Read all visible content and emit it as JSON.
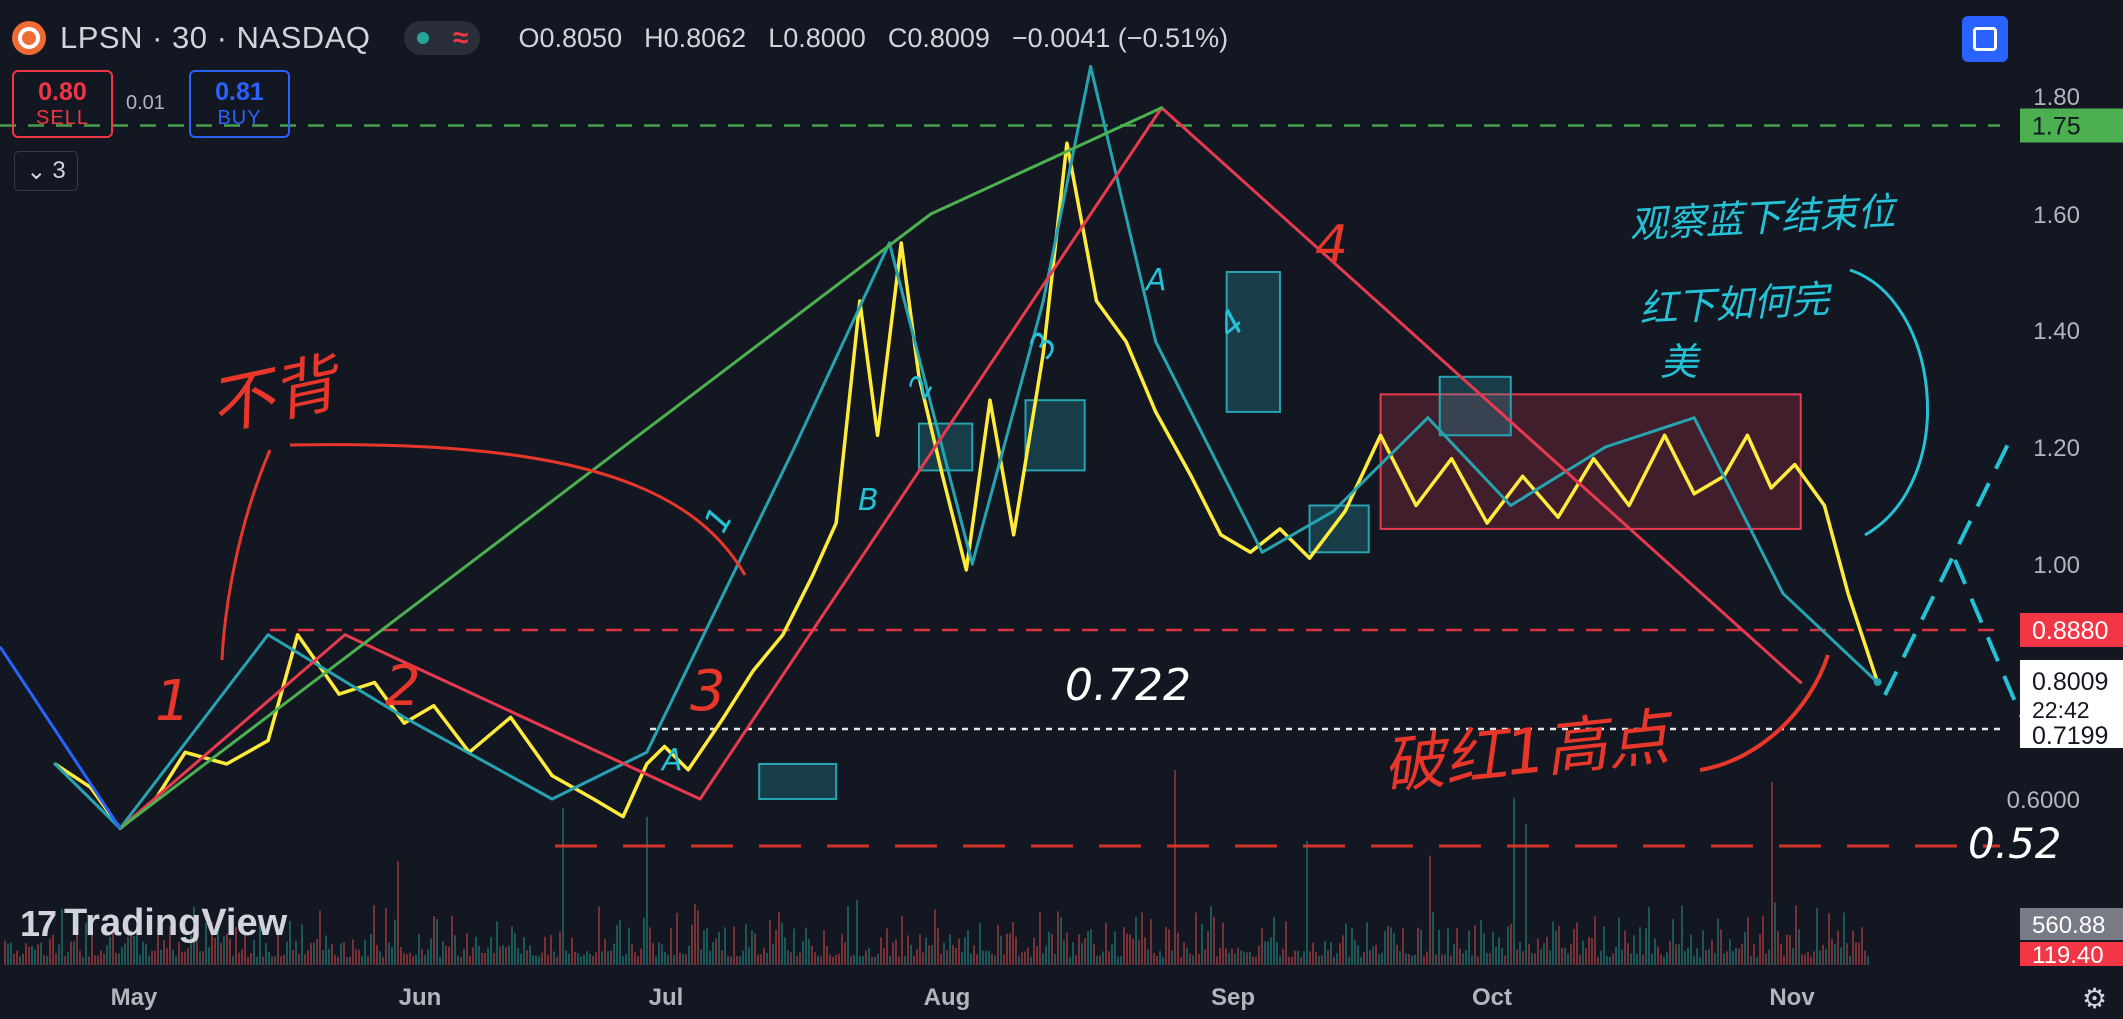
{
  "header": {
    "symbol": "LPSN · 30 · NASDAQ",
    "open_label": "O",
    "open": "0.8050",
    "high_label": "H",
    "high": "0.8062",
    "low_label": "L",
    "low": "0.8000",
    "close_label": "C",
    "close": "0.8009",
    "change": "−0.0041 (−0.51%)"
  },
  "trade": {
    "sell_price": "0.80",
    "sell_label": "SELL",
    "spread": "0.01",
    "buy_price": "0.81",
    "buy_label": "BUY"
  },
  "collapse_count": "3",
  "branding": "TradingView",
  "colors": {
    "background": "#131722",
    "candle_up": "#26a69a",
    "candle_down": "#ef5350",
    "yellow": "#ffeb3b",
    "teal": "#26a3b0",
    "red_line": "#e83a4f",
    "green_line": "#4caf50",
    "annot_red": "#e8372a",
    "annot_cyan": "#25c1d6"
  },
  "chart_data": {
    "type": "line",
    "title": "LPSN · 30 · NASDAQ",
    "x_tick_labels": [
      "May",
      "Jun",
      "Jul",
      "Aug",
      "Sep",
      "Oct",
      "Nov"
    ],
    "y_tick_labels": [
      "1.80",
      "1.60",
      "1.40",
      "1.20",
      "1.00",
      "0.6000"
    ],
    "ylim": [
      0.35,
      1.86
    ],
    "price_scale": "log-like (non-linear)",
    "series": [
      {
        "name": "price path (yellow)",
        "color": "#ffeb3b",
        "x": [
          0,
          0.3,
          0.55,
          0.85,
          1.1,
          1.45,
          1.8,
          2.05,
          2.4,
          2.7,
          2.95,
          3.2,
          3.5,
          3.85,
          4.2,
          4.55,
          4.8,
          5.0,
          5.15,
          5.35,
          5.65,
          5.9,
          6.15,
          6.4,
          6.6,
          6.8,
          6.95,
          7.15,
          7.3,
          7.5,
          7.7,
          7.9,
          8.1,
          8.35,
          8.55,
          8.8,
          9.05,
          9.3,
          9.6,
          9.85,
          10.1,
          10.35,
          10.6,
          10.9,
          11.2,
          11.5,
          11.8,
          12.1,
          12.4,
          12.7,
          13.0,
          13.3,
          13.6,
          13.85,
          14.1,
          14.3,
          14.5,
          14.7,
          14.95,
          15.15,
          15.4
        ],
        "values": [
          0.66,
          0.62,
          0.55,
          0.6,
          0.68,
          0.66,
          0.7,
          0.88,
          0.78,
          0.8,
          0.73,
          0.76,
          0.68,
          0.74,
          0.64,
          0.6,
          0.57,
          0.66,
          0.69,
          0.65,
          0.74,
          0.82,
          0.88,
          0.98,
          1.07,
          1.45,
          1.22,
          1.55,
          1.32,
          1.15,
          0.99,
          1.28,
          1.05,
          1.36,
          1.72,
          1.45,
          1.38,
          1.26,
          1.15,
          1.05,
          1.02,
          1.06,
          1.01,
          1.09,
          1.22,
          1.1,
          1.18,
          1.07,
          1.15,
          1.08,
          1.18,
          1.1,
          1.22,
          1.12,
          1.15,
          1.22,
          1.13,
          1.17,
          1.1,
          0.95,
          0.8
        ]
      },
      {
        "name": "wave path (teal)",
        "color": "#26a3b0",
        "x": [
          0,
          0.55,
          1.8,
          2.95,
          4.2,
          5.0,
          6.25,
          7.05,
          7.75,
          8.35,
          8.75,
          9.3,
          10.2,
          10.8,
          11.6,
          12.3,
          13.1,
          13.85,
          14.6,
          15.4
        ],
        "values": [
          0.66,
          0.55,
          0.88,
          0.74,
          0.6,
          0.68,
          1.2,
          1.55,
          1.0,
          1.45,
          1.85,
          1.38,
          1.02,
          1.09,
          1.25,
          1.1,
          1.2,
          1.25,
          0.95,
          0.8
        ]
      },
      {
        "name": "trend legs (red)",
        "color": "#e83a4f",
        "x": [
          0.55,
          2.45,
          5.45,
          9.35,
          14.75
        ],
        "values": [
          0.55,
          0.88,
          0.6,
          1.78,
          0.8
        ]
      },
      {
        "name": "big wave (green)",
        "color": "#4caf50",
        "x": [
          0.55,
          7.4,
          9.35
        ],
        "values": [
          0.55,
          1.6,
          1.78
        ]
      }
    ],
    "horizontal_levels": [
      {
        "value": 1.75,
        "label": "1.75",
        "style": "dashed",
        "color": "#4caf50"
      },
      {
        "value": 0.888,
        "label": "0.8880",
        "style": "dashed",
        "color": "#f23645"
      },
      {
        "value": 0.7199,
        "label": "0.7199",
        "style": "dashed",
        "color": "#ffffff"
      },
      {
        "value": 0.52,
        "label": "0.52",
        "style": "long-dash",
        "color": "#e8372a"
      }
    ],
    "current_price": {
      "value": 0.8009,
      "label": "0.8009",
      "countdown": "22:42"
    },
    "volume_labels": [
      "560.88",
      "119.40"
    ],
    "box": {
      "x_from": 11.2,
      "x_to": 14.75,
      "y_from": 1.06,
      "y_to": 1.29
    },
    "annotations": {
      "red_handwritten": [
        "不背",
        "1",
        "2",
        "3",
        "4",
        "破红1高点"
      ],
      "white_handwritten": "0.722",
      "cyan_handwritten": [
        "观察蓝下结束位",
        "红下如何完",
        "美",
        "1",
        "2",
        "3",
        "4",
        "A",
        "B"
      ],
      "level_note": "0.52"
    }
  }
}
